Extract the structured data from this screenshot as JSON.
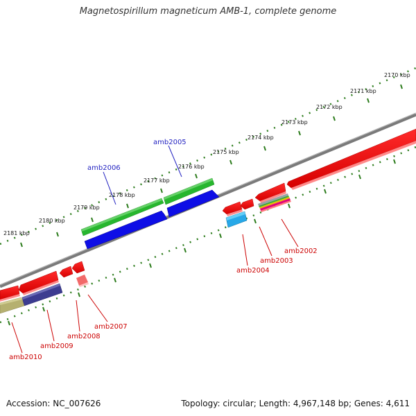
{
  "title": "Magnetospirillum magneticum AMB-1, complete genome",
  "footer": {
    "accession": "Accession: NC_007626",
    "topology": "Topology: circular; Length: 4,967,148 bp; Genes: 4,611"
  },
  "colors": {
    "backbone": "#7d7d7d",
    "ticks": "#2e7d1e",
    "forward_label": "#1f1fc0",
    "reverse_label": "#cc0000",
    "leader": "#cc0000"
  },
  "kbp_labels": [
    "2170 kbp",
    "2171 kbp",
    "2172 kbp",
    "2173 kbp",
    "2174 kbp",
    "2175 kbp",
    "2176 kbp",
    "2177 kbp",
    "2178 kbp",
    "2179 kbp",
    "2180 kbp",
    "2181 kbp"
  ],
  "forward_genes": [
    "amb2005",
    "amb2006"
  ],
  "reverse_genes": [
    "amb2002",
    "amb2003",
    "amb2004",
    "amb2007",
    "amb2008",
    "amb2009",
    "amb2010"
  ]
}
